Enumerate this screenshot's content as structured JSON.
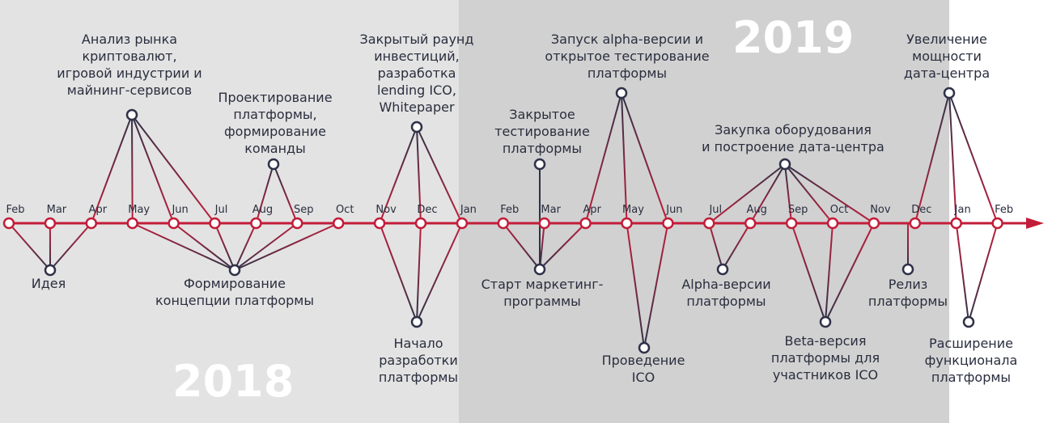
{
  "colors": {
    "bg_2018": "#e3e3e3",
    "bg_2019": "#d1d1d1",
    "year_text": "#ffffff",
    "red": "#c21d3a",
    "dark": "#2e3148",
    "text": "#2a2e3e"
  },
  "years": {
    "y2018": "2018",
    "y2019": "2019"
  },
  "months": [
    "Feb",
    "Mar",
    "Apr",
    "May",
    "Jun",
    "Jul",
    "Aug",
    "Sep",
    "Oct",
    "Nov",
    "Dec",
    "Jan",
    "Feb",
    "Mar",
    "Apr",
    "May",
    "Jun",
    "Jul",
    "Aug",
    "Sep",
    "Oct",
    "Nov",
    "Dec",
    "Jan",
    "Feb"
  ],
  "events": {
    "market_analysis": "Анализ рынка\nкриптовалют,\nигровой индустрии и\nмайнинг-сервисов",
    "platform_design": "Проектирование\nплатформы,\nформирование\nкоманды",
    "private_round": "Закрытый раунд\nинвестиций,\nразработка\nlending ICO,\nWhitepaper",
    "closed_testing": "Закрытое\nтестирование\nплатформы",
    "alpha_launch": "Запуск alpha-версии и\nоткрытое тестирование\nплатформы",
    "equipment": "Закупка оборудования\nи построение дата-центра",
    "datacenter": "Увеличение\nмощности\nдата-центра",
    "idea": "Идея",
    "concept": "Формирование\nконцепции платформы",
    "dev_start": "Начало\nразработки\nплатформы",
    "marketing": "Старт маркетинг-\nпрограммы",
    "ico": "Проведение\nICO",
    "alpha_versions": "Alpha-версии\nплатформы",
    "beta": "Beta-версия\nплатформы для\nучастников ICO",
    "release": "Релиз\nплатформы",
    "expansion": "Расширение\nфункционала\nплатформы"
  }
}
